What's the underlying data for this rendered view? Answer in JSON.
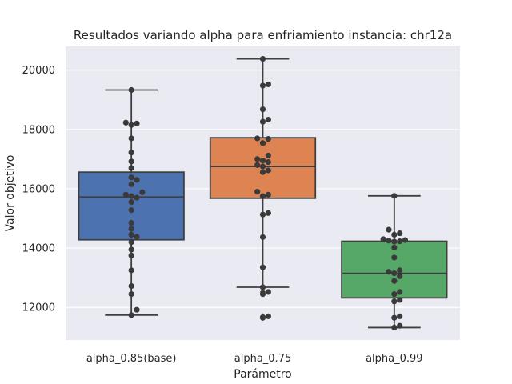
{
  "chart_data": {
    "type": "box",
    "title": "Resultados variando alpha para enfriamiento instancia: chr12a",
    "xlabel": "Parámetro",
    "ylabel": "Valor objetivo",
    "ylim": [
      10900,
      20800
    ],
    "yticks": [
      12000,
      14000,
      16000,
      18000,
      20000
    ],
    "grid": true,
    "categories": [
      "alpha_0.85(base)",
      "alpha_0.75",
      "alpha_0.99"
    ],
    "boxes": [
      {
        "name": "alpha_0.85(base)",
        "color": "#4c72b0",
        "whisker_low": 11740,
        "q1": 14280,
        "median": 15720,
        "q3": 16560,
        "whisker_high": 19330,
        "outliers": [],
        "points": [
          11740,
          11920,
          12450,
          12720,
          13250,
          13750,
          13950,
          14200,
          14380,
          14450,
          14650,
          14850,
          15280,
          15550,
          15700,
          15750,
          15800,
          15880,
          16150,
          16300,
          16380,
          16700,
          16920,
          17220,
          17700,
          18150,
          18200,
          18230,
          19330
        ]
      },
      {
        "name": "alpha_0.75",
        "color": "#dd8452",
        "whisker_low": 12680,
        "q1": 15680,
        "median": 16750,
        "q3": 17720,
        "whisker_high": 20380,
        "outliers": [
          11650,
          11700,
          12450,
          12520
        ],
        "points": [
          11650,
          11700,
          12450,
          12520,
          12680,
          13350,
          14370,
          15130,
          15180,
          15750,
          15800,
          15900,
          16560,
          16620,
          16750,
          16800,
          16900,
          16950,
          17000,
          17120,
          17540,
          17680,
          17700,
          18260,
          18330,
          18680,
          19480,
          19520,
          20380
        ]
      },
      {
        "name": "alpha_0.99",
        "color": "#55a868",
        "whisker_low": 11320,
        "q1": 12320,
        "median": 13150,
        "q3": 14230,
        "whisker_high": 15760,
        "outliers": [],
        "points": [
          11320,
          11380,
          11650,
          11700,
          12200,
          12250,
          12450,
          12520,
          12890,
          13050,
          13150,
          13200,
          13250,
          13680,
          14020,
          14220,
          14230,
          14250,
          14270,
          14300,
          14450,
          14500,
          14620,
          15760
        ]
      }
    ]
  }
}
